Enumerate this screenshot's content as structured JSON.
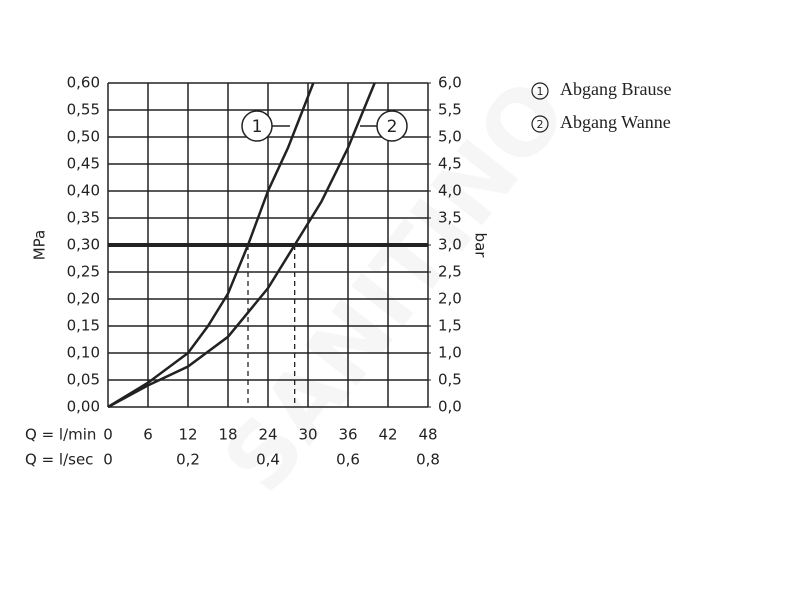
{
  "chart_data": {
    "type": "line",
    "x_label": "Q = l/min",
    "x2_label": "Q = l/sec",
    "y_label": "MPa",
    "y2_label": "bar",
    "xlim": [
      0,
      48
    ],
    "xticks": [
      0,
      6,
      12,
      18,
      24,
      30,
      36,
      42,
      48
    ],
    "x2lim": [
      0,
      0.8
    ],
    "x2ticks": [
      {
        "value": 0,
        "label": "0"
      },
      {
        "value": 0.2,
        "label": "0,2"
      },
      {
        "value": 0.4,
        "label": "0,4"
      },
      {
        "value": 0.6,
        "label": "0,6"
      },
      {
        "value": 0.8,
        "label": "0,8"
      }
    ],
    "ylim": [
      0,
      0.6
    ],
    "yticks": [
      {
        "value": 0,
        "label": "0,00"
      },
      {
        "value": 0.05,
        "label": "0,05"
      },
      {
        "value": 0.1,
        "label": "0,10"
      },
      {
        "value": 0.15,
        "label": "0,15"
      },
      {
        "value": 0.2,
        "label": "0,20"
      },
      {
        "value": 0.25,
        "label": "0,25"
      },
      {
        "value": 0.3,
        "label": "0,30"
      },
      {
        "value": 0.35,
        "label": "0,35"
      },
      {
        "value": 0.4,
        "label": "0,40"
      },
      {
        "value": 0.45,
        "label": "0,45"
      },
      {
        "value": 0.5,
        "label": "0,50"
      },
      {
        "value": 0.55,
        "label": "0,55"
      },
      {
        "value": 0.6,
        "label": "0,60"
      }
    ],
    "y2lim": [
      0,
      6
    ],
    "y2ticks": [
      {
        "value": 0,
        "label": "0,0"
      },
      {
        "value": 0.5,
        "label": "0,5"
      },
      {
        "value": 1,
        "label": "1,0"
      },
      {
        "value": 1.5,
        "label": "1,5"
      },
      {
        "value": 2,
        "label": "2,0"
      },
      {
        "value": 2.5,
        "label": "2,5"
      },
      {
        "value": 3,
        "label": "3,0"
      },
      {
        "value": 3.5,
        "label": "3,5"
      },
      {
        "value": 4,
        "label": "4,0"
      },
      {
        "value": 4.5,
        "label": "4,5"
      },
      {
        "value": 5,
        "label": "5,0"
      },
      {
        "value": 5.5,
        "label": "5,5"
      },
      {
        "value": 6,
        "label": "6,0"
      }
    ],
    "grid": true,
    "reference_y": 0.3,
    "series": [
      {
        "name": "Abgang Brause",
        "marker": "1",
        "color": "#222222",
        "x": [
          0,
          6,
          12,
          15,
          18,
          21,
          24,
          27,
          30.8
        ],
        "values": [
          0,
          0.045,
          0.1,
          0.15,
          0.21,
          0.3,
          0.4,
          0.48,
          0.6
        ],
        "drop_x": 21
      },
      {
        "name": "Abgang Wanne",
        "marker": "2",
        "color": "#222222",
        "x": [
          0,
          6,
          12,
          18,
          24,
          28,
          32,
          36,
          40
        ],
        "values": [
          0,
          0.04,
          0.075,
          0.13,
          0.22,
          0.3,
          0.38,
          0.48,
          0.6
        ],
        "drop_x": 28
      }
    ],
    "watermark": "SANITINO"
  }
}
